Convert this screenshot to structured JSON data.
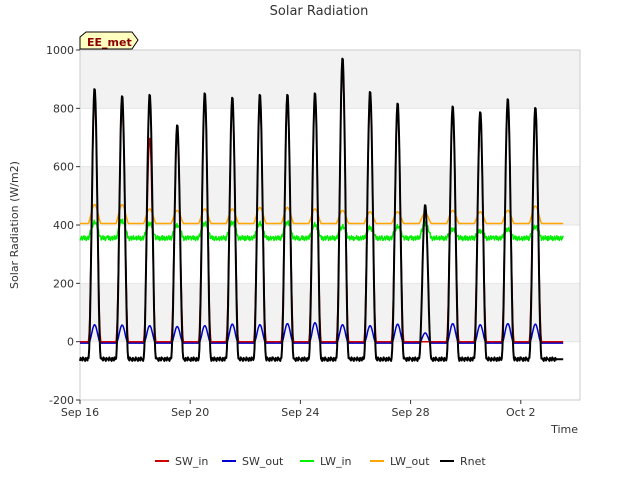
{
  "chart_data": {
    "type": "line",
    "title": "Solar Radiation",
    "xlabel": "Time",
    "ylabel": "Solar Radiation (W/m2)",
    "badge": "EE_met",
    "ylim": [
      -200,
      1000
    ],
    "yticks": [
      -200,
      0,
      200,
      400,
      600,
      800,
      1000
    ],
    "xlim": [
      "2023-09-16",
      "2023-10-04"
    ],
    "xticks": [
      {
        "date": "2023-09-16",
        "label": "Sep 16"
      },
      {
        "date": "2023-09-20",
        "label": "Sep 20"
      },
      {
        "date": "2023-09-24",
        "label": "Sep 24"
      },
      {
        "date": "2023-09-28",
        "label": "Sep 28"
      },
      {
        "date": "2023-10-02",
        "label": "Oct 2"
      }
    ],
    "grid": "horizontal bands",
    "legend_position": "bottom",
    "days": [
      "2023-09-16",
      "2023-09-17",
      "2023-09-18",
      "2023-09-19",
      "2023-09-20",
      "2023-09-21",
      "2023-09-22",
      "2023-09-23",
      "2023-09-24",
      "2023-09-25",
      "2023-09-26",
      "2023-09-27",
      "2023-09-28",
      "2023-09-29",
      "2023-09-30",
      "2023-10-01",
      "2023-10-02",
      "2023-10-03"
    ],
    "series": [
      {
        "name": "SW_in",
        "color": "#cc0000",
        "daily_peak": [
          840,
          810,
          700,
          720,
          845,
          820,
          820,
          835,
          840,
          950,
          830,
          810,
          0,
          790,
          760,
          815,
          790,
          0
        ],
        "night": 0
      },
      {
        "name": "SW_out",
        "color": "#0000cc",
        "daily_peak": [
          58,
          57,
          55,
          52,
          55,
          60,
          58,
          62,
          65,
          58,
          55,
          60,
          30,
          62,
          58,
          62,
          60,
          0
        ],
        "night": -5
      },
      {
        "name": "LW_in",
        "color": "#00ee00",
        "daily_peak": [
          410,
          415,
          405,
          400,
          405,
          410,
          405,
          410,
          400,
          395,
          390,
          395,
          405,
          385,
          380,
          385,
          395,
          0
        ],
        "night": 355
      },
      {
        "name": "LW_out",
        "color": "#ffa500",
        "daily_peak": [
          470,
          470,
          455,
          450,
          455,
          455,
          460,
          460,
          455,
          450,
          445,
          445,
          440,
          450,
          445,
          450,
          465,
          0
        ],
        "night": 405
      },
      {
        "name": "Rnet",
        "color": "#000000",
        "daily_peak": [
          870,
          845,
          850,
          745,
          855,
          840,
          850,
          850,
          855,
          975,
          860,
          820,
          470,
          810,
          790,
          835,
          805,
          0
        ],
        "night": -60
      }
    ]
  }
}
